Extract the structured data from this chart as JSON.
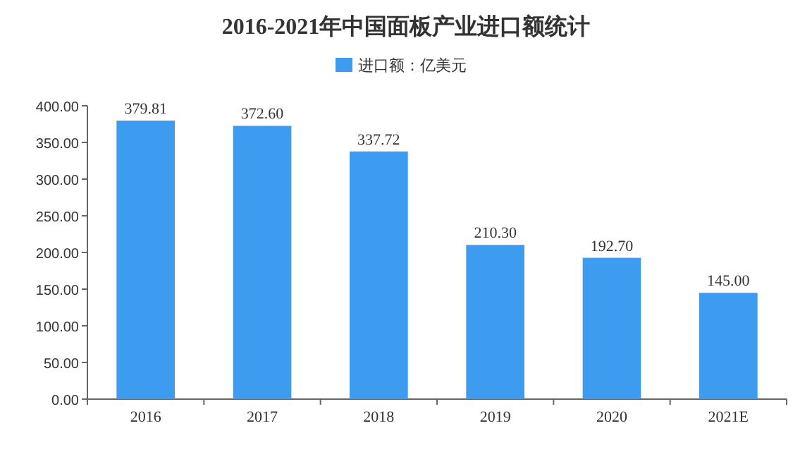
{
  "chart_data": {
    "type": "bar",
    "title": "2016-2021年中国面板产业进口额统计",
    "categories": [
      "2016",
      "2017",
      "2018",
      "2019",
      "2020",
      "2021E"
    ],
    "series": [
      {
        "name": "进口额：亿美元",
        "color": "#3d9cf0",
        "values": [
          379.81,
          372.6,
          337.72,
          210.3,
          192.7,
          145.0
        ],
        "value_labels": [
          "379.81",
          "372.60",
          "337.72",
          "210.30",
          "192.70",
          "145.00"
        ]
      }
    ],
    "ylim": [
      0,
      400
    ],
    "yticks": [
      {
        "value": 0,
        "label": "0.00"
      },
      {
        "value": 50,
        "label": "50.00"
      },
      {
        "value": 100,
        "label": "100.00"
      },
      {
        "value": 150,
        "label": "150.00"
      },
      {
        "value": 200,
        "label": "200.00"
      },
      {
        "value": 250,
        "label": "250.00"
      },
      {
        "value": 300,
        "label": "300.00"
      },
      {
        "value": 350,
        "label": "350.00"
      },
      {
        "value": 400,
        "label": "400.00"
      }
    ],
    "legend": "top"
  }
}
